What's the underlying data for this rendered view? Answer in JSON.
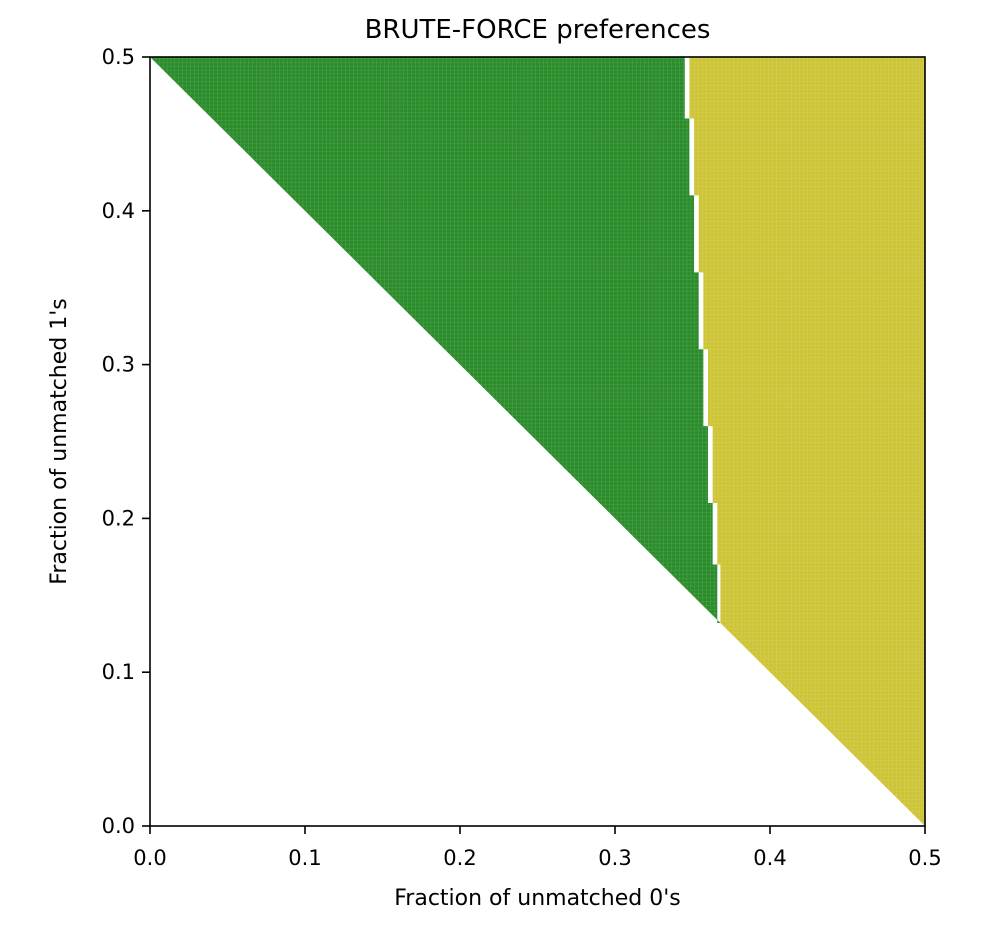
{
  "chart_data": {
    "type": "heatmap",
    "title": "BRUTE-FORCE preferences",
    "xlabel": "Fraction of unmatched 0's",
    "ylabel": "Fraction of unmatched 1's",
    "xlim": [
      0.0,
      0.5
    ],
    "ylim": [
      0.0,
      0.5
    ],
    "x_ticks": [
      0.0,
      0.1,
      0.2,
      0.3,
      0.4,
      0.5
    ],
    "y_ticks": [
      0.0,
      0.1,
      0.2,
      0.3,
      0.4,
      0.5
    ],
    "x_tick_labels": [
      "0.0",
      "0.1",
      "0.2",
      "0.3",
      "0.4",
      "0.5"
    ],
    "y_tick_labels": [
      "0.0",
      "0.1",
      "0.2",
      "0.3",
      "0.4",
      "0.5"
    ],
    "grid": false,
    "legend": "none",
    "valid_region": "x + y >= 0.5",
    "regions": [
      {
        "color": "#2a8c2a",
        "description": "points where x is left of the boundary",
        "boundary_x_by_y": [
          {
            "y": 0.5,
            "x": 0.345
          },
          {
            "y": 0.46,
            "x": 0.348
          },
          {
            "y": 0.41,
            "x": 0.351
          },
          {
            "y": 0.36,
            "x": 0.354
          },
          {
            "y": 0.31,
            "x": 0.357
          },
          {
            "y": 0.26,
            "x": 0.36
          },
          {
            "y": 0.21,
            "x": 0.363
          },
          {
            "y": 0.17,
            "x": 0.366
          },
          {
            "y": 0.132,
            "x": 0.368
          }
        ]
      },
      {
        "color": "#cdc436",
        "description": "points where x is right of the boundary"
      }
    ]
  }
}
